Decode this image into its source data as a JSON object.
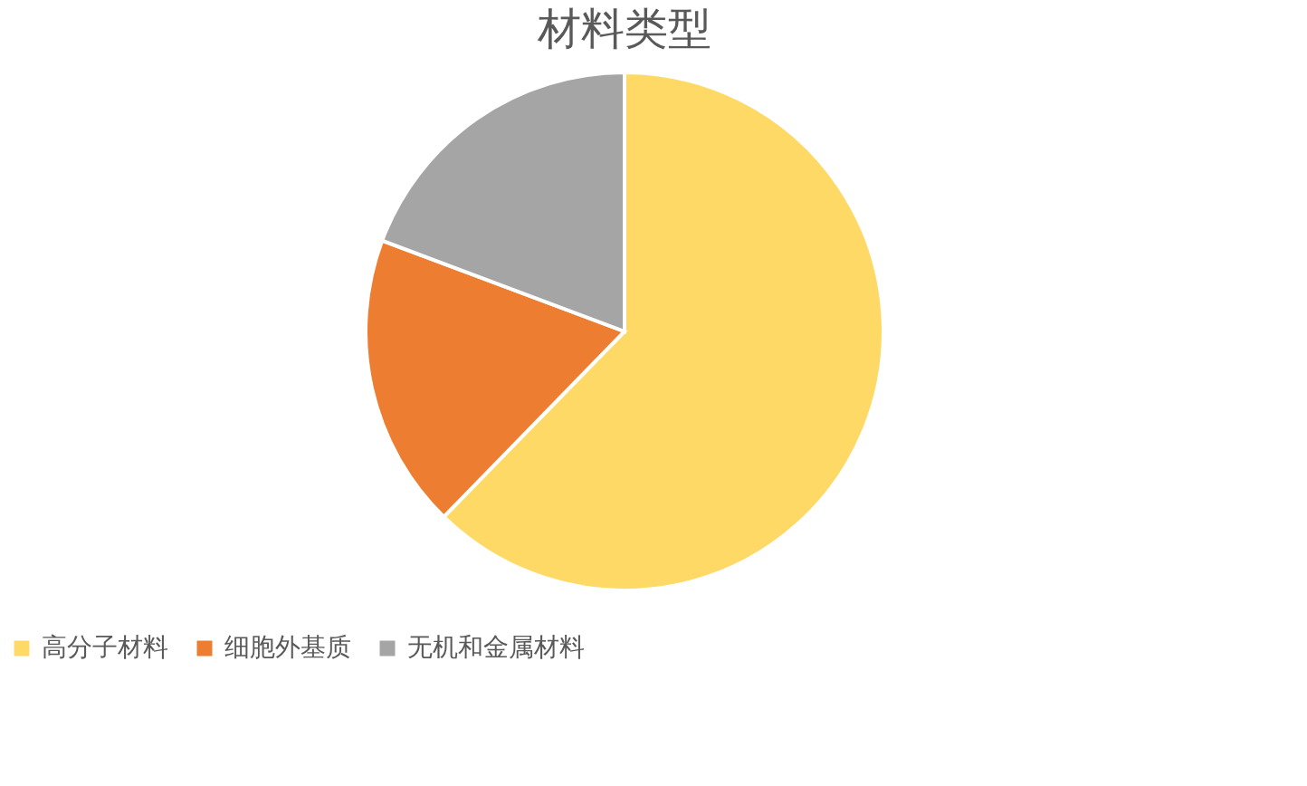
{
  "chart_data": {
    "type": "pie",
    "title": "材料类型",
    "categories": [
      "高分子材料",
      "细胞外基质",
      "无机和金属材料"
    ],
    "values": [
      62.3,
      18.4,
      19.3
    ],
    "colors": [
      "#ffd966",
      "#ed7d31",
      "#a5a5a5"
    ],
    "legend": "bottom"
  }
}
